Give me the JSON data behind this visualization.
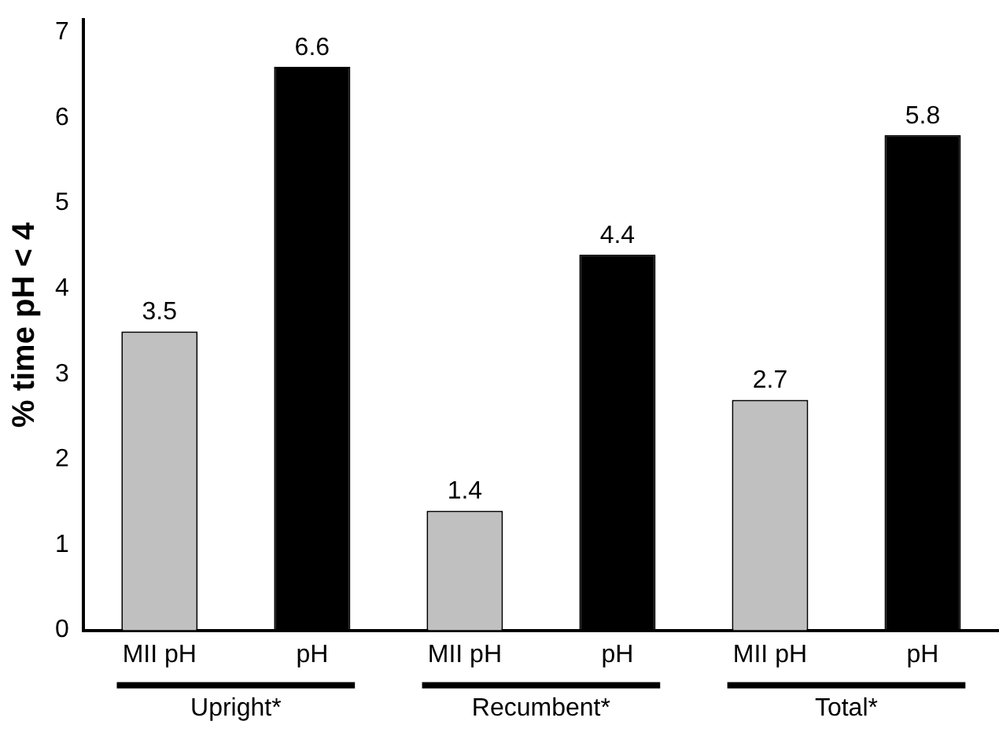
{
  "chart_data": {
    "type": "bar",
    "ylabel": "% time pH < 4",
    "categories": [
      "MII pH",
      "pH",
      "MII pH",
      "pH",
      "MII pH",
      "pH"
    ],
    "values": [
      3.5,
      6.6,
      1.4,
      4.4,
      2.7,
      5.8
    ],
    "colors": [
      "#c0c0c0",
      "#000000",
      "#c0c0c0",
      "#000000",
      "#c0c0c0",
      "#000000"
    ],
    "ylim": [
      0,
      7.15
    ],
    "yticks": [
      0,
      1,
      2,
      3,
      4,
      5,
      6,
      7
    ],
    "grid": false,
    "legend": false,
    "data_labels": true,
    "annotations": [
      "Upright*",
      "Recumbent*",
      "Total*"
    ]
  }
}
